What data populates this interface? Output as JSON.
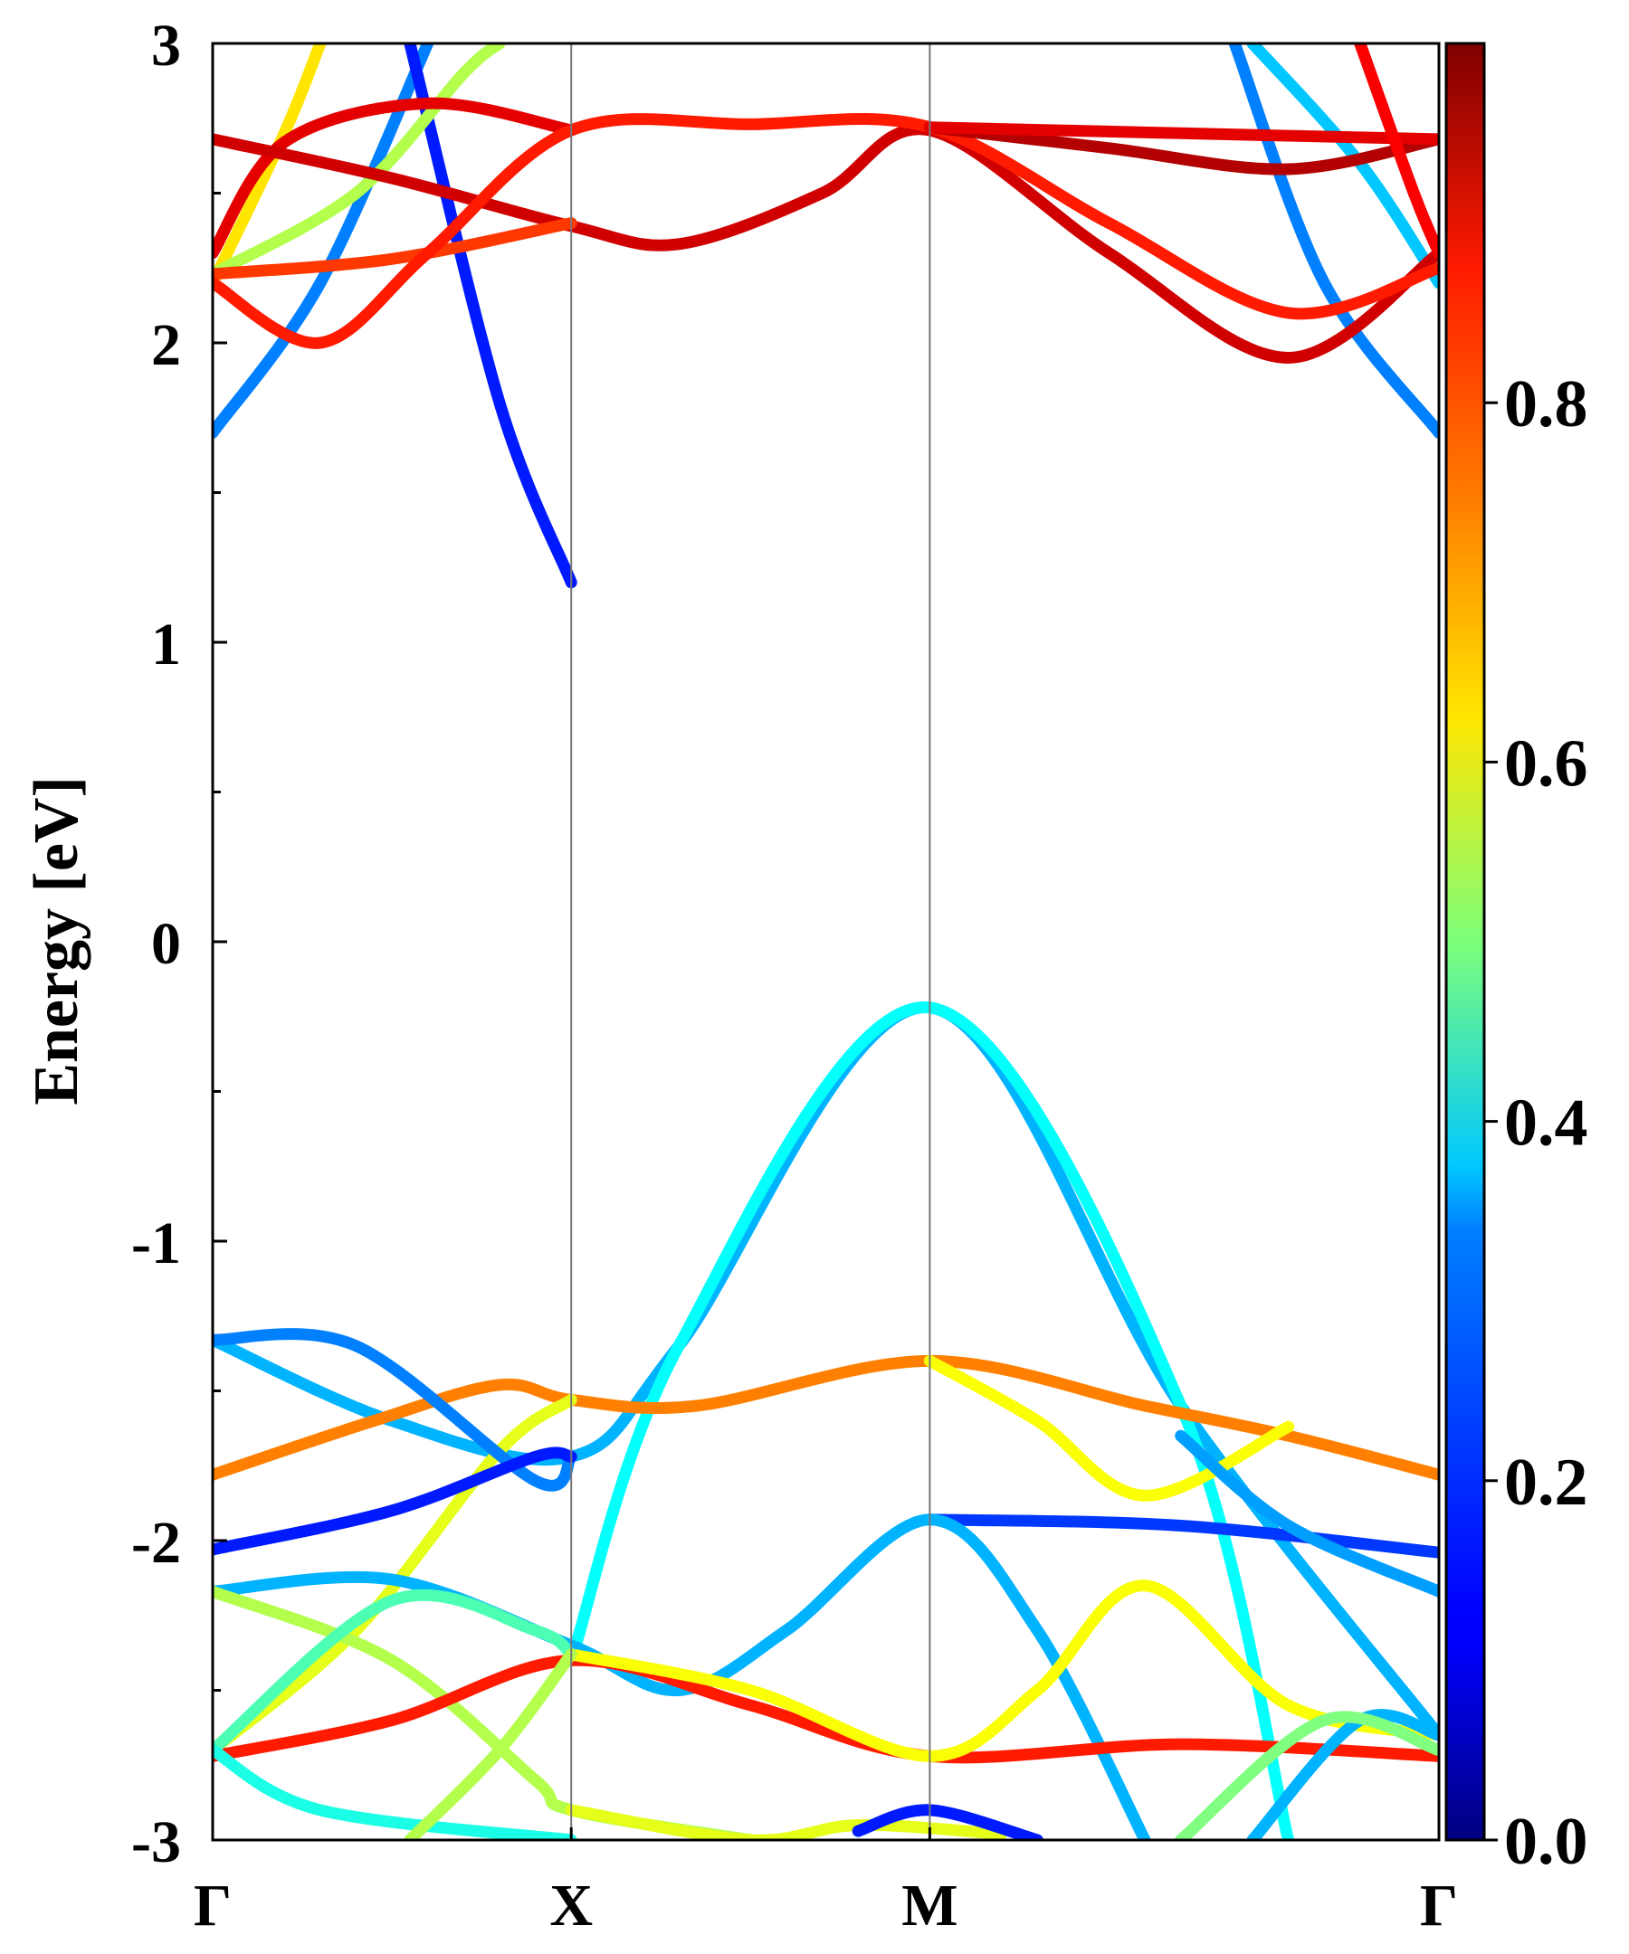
{
  "chart_data": {
    "type": "line",
    "title": "",
    "ylabel": "Energy [eV]",
    "xlabel": "",
    "ylim": [
      -3,
      3
    ],
    "yticks": [
      "-3",
      "-2",
      "-1",
      "0",
      "1",
      "2",
      "3"
    ],
    "kpath": [
      "Γ",
      "X",
      "M",
      "Γ"
    ],
    "kpath_positions": [
      0,
      1,
      2,
      3.42
    ],
    "colorbar": {
      "colormap": "jet",
      "range": [
        0.0,
        1.0
      ],
      "ticks": [
        "0.0",
        "0.2",
        "0.4",
        "0.6",
        "0.8"
      ]
    },
    "series": [
      {
        "color_value": 0.3,
        "points": [
          [
            0,
            -1.33
          ],
          [
            0.5,
            -1.6
          ],
          [
            1,
            -1.72
          ],
          [
            1.3,
            -1.35
          ],
          [
            2,
            -0.22
          ],
          [
            2.7,
            -1.55
          ],
          [
            3.42,
            -2.65
          ]
        ]
      },
      {
        "color_value": 0.38,
        "points": [
          [
            1,
            -2.4
          ],
          [
            1.3,
            -1.35
          ],
          [
            2,
            -0.22
          ],
          [
            2.7,
            -1.55
          ],
          [
            3.0,
            -3.0
          ]
        ]
      },
      {
        "color_value": 0.75,
        "points": [
          [
            0,
            -1.78
          ],
          [
            0.45,
            -1.6
          ],
          [
            0.8,
            -1.48
          ],
          [
            1,
            -1.53
          ],
          [
            1.35,
            -1.55
          ],
          [
            2,
            -1.4
          ],
          [
            2.6,
            -1.55
          ],
          [
            3.0,
            -1.65
          ],
          [
            3.42,
            -1.78
          ]
        ]
      },
      {
        "color_value": 0.6,
        "points": [
          [
            0,
            -2.7
          ],
          [
            0.4,
            -2.3
          ],
          [
            0.8,
            -1.7
          ],
          [
            1,
            -1.53
          ]
        ]
      },
      {
        "color_value": 0.62,
        "points": [
          [
            2,
            -1.4
          ],
          [
            2.3,
            -1.6
          ],
          [
            2.6,
            -1.85
          ],
          [
            3.0,
            -1.62
          ]
        ]
      },
      {
        "color_value": 0.25,
        "points": [
          [
            0,
            -1.33
          ],
          [
            0.4,
            -1.35
          ],
          [
            0.9,
            -1.8
          ],
          [
            1,
            -1.72
          ]
        ]
      },
      {
        "color_value": 0.15,
        "points": [
          [
            0,
            -2.03
          ],
          [
            0.5,
            -1.9
          ],
          [
            0.9,
            -1.72
          ],
          [
            1,
            -1.72
          ]
        ]
      },
      {
        "color_value": 0.18,
        "points": [
          [
            2,
            -1.93
          ],
          [
            2.7,
            -1.95
          ],
          [
            3.42,
            -2.04
          ]
        ]
      },
      {
        "color_value": 0.28,
        "points": [
          [
            2.7,
            -1.65
          ],
          [
            3.0,
            -1.95
          ],
          [
            3.42,
            -2.17
          ]
        ]
      },
      {
        "color_value": 0.3,
        "points": [
          [
            0,
            -2.17
          ],
          [
            0.5,
            -2.13
          ],
          [
            1,
            -2.35
          ],
          [
            1.3,
            -2.5
          ],
          [
            1.6,
            -2.3
          ],
          [
            2,
            -1.93
          ],
          [
            2.3,
            -2.3
          ],
          [
            2.6,
            -3.0
          ]
        ]
      },
      {
        "color_value": 0.55,
        "points": [
          [
            0,
            -2.17
          ],
          [
            0.5,
            -2.4
          ],
          [
            0.9,
            -2.8
          ],
          [
            1,
            -2.9
          ],
          [
            1.5,
            -3.0
          ]
        ]
      },
      {
        "color_value": 0.85,
        "points": [
          [
            0,
            -2.72
          ],
          [
            0.5,
            -2.6
          ],
          [
            1,
            -2.4
          ],
          [
            1.5,
            -2.55
          ],
          [
            2,
            -2.72
          ],
          [
            2.7,
            -2.68
          ],
          [
            3.42,
            -2.72
          ]
        ]
      },
      {
        "color_value": 0.62,
        "points": [
          [
            1,
            -2.38
          ],
          [
            1.5,
            -2.5
          ],
          [
            2,
            -2.72
          ],
          [
            2.3,
            -2.5
          ],
          [
            2.6,
            -2.15
          ],
          [
            3.0,
            -2.55
          ],
          [
            3.42,
            -2.65
          ]
        ]
      },
      {
        "color_value": 0.45,
        "points": [
          [
            0,
            -2.7
          ],
          [
            0.5,
            -2.2
          ],
          [
            0.9,
            -2.3
          ],
          [
            1,
            -2.38
          ]
        ]
      },
      {
        "color_value": 0.4,
        "points": [
          [
            0,
            -2.7
          ],
          [
            0.3,
            -2.9
          ],
          [
            1,
            -3.0
          ]
        ]
      },
      {
        "color_value": 0.55,
        "points": [
          [
            0.55,
            -3.0
          ],
          [
            0.8,
            -2.7
          ],
          [
            1,
            -2.38
          ]
        ]
      },
      {
        "color_value": 0.3,
        "points": [
          [
            2.9,
            -3.0
          ],
          [
            3.2,
            -2.6
          ],
          [
            3.42,
            -2.65
          ]
        ]
      },
      {
        "color_value": 0.5,
        "points": [
          [
            2.7,
            -3.0
          ],
          [
            3.1,
            -2.6
          ],
          [
            3.42,
            -2.7
          ]
        ]
      },
      {
        "color_value": 0.6,
        "points": [
          [
            1,
            -2.9
          ],
          [
            1.5,
            -3.0
          ],
          [
            1.8,
            -2.95
          ],
          [
            2.2,
            -2.98
          ]
        ]
      },
      {
        "color_value": 0.15,
        "points": [
          [
            1.8,
            -2.97
          ],
          [
            2,
            -2.9
          ],
          [
            2.3,
            -3.0
          ]
        ]
      },
      {
        "color_value": 0.25,
        "points": [
          [
            0,
            1.7
          ],
          [
            0.3,
            2.2
          ],
          [
            0.6,
            3.0
          ]
        ]
      },
      {
        "color_value": 0.15,
        "points": [
          [
            0.55,
            3.0
          ],
          [
            0.8,
            1.8
          ],
          [
            1,
            1.2
          ]
        ]
      },
      {
        "color_value": 0.25,
        "points": [
          [
            2.85,
            3.0
          ],
          [
            3.1,
            2.2
          ],
          [
            3.42,
            1.7
          ]
        ]
      },
      {
        "color_value": 0.32,
        "points": [
          [
            2.9,
            3.0
          ],
          [
            3.2,
            2.6
          ],
          [
            3.42,
            2.2
          ]
        ]
      },
      {
        "color_value": 0.65,
        "points": [
          [
            0,
            2.2
          ],
          [
            0.2,
            2.7
          ],
          [
            0.3,
            3.0
          ]
        ]
      },
      {
        "color_value": 0.55,
        "points": [
          [
            0,
            2.23
          ],
          [
            0.4,
            2.5
          ],
          [
            0.7,
            2.9
          ],
          [
            0.8,
            3.0
          ]
        ]
      },
      {
        "color_value": 0.9,
        "points": [
          [
            0,
            2.3
          ],
          [
            0.2,
            2.67
          ],
          [
            0.6,
            2.8
          ],
          [
            1,
            2.71
          ]
        ]
      },
      {
        "color_value": 0.92,
        "points": [
          [
            0,
            2.68
          ],
          [
            0.5,
            2.55
          ],
          [
            1,
            2.39
          ],
          [
            1.3,
            2.33
          ],
          [
            1.7,
            2.5
          ],
          [
            2,
            2.71
          ],
          [
            2.5,
            2.3
          ],
          [
            3.0,
            1.95
          ],
          [
            3.42,
            2.3
          ]
        ]
      },
      {
        "color_value": 0.82,
        "points": [
          [
            0,
            2.23
          ],
          [
            0.5,
            2.28
          ],
          [
            1,
            2.4
          ]
        ]
      },
      {
        "color_value": 0.85,
        "points": [
          [
            0,
            2.2
          ],
          [
            0.3,
            2.0
          ],
          [
            0.6,
            2.3
          ],
          [
            1,
            2.71
          ],
          [
            1.5,
            2.73
          ],
          [
            2,
            2.72
          ],
          [
            2.5,
            2.4
          ],
          [
            3.0,
            2.1
          ],
          [
            3.42,
            2.25
          ]
        ]
      },
      {
        "color_value": 0.95,
        "points": [
          [
            2,
            2.72
          ],
          [
            2.5,
            2.65
          ],
          [
            3.0,
            2.58
          ],
          [
            3.42,
            2.68
          ]
        ]
      },
      {
        "color_value": 0.9,
        "points": [
          [
            2,
            2.72
          ],
          [
            2.7,
            2.7
          ],
          [
            3.42,
            2.68
          ]
        ]
      },
      {
        "color_value": 0.88,
        "points": [
          [
            3.2,
            3.0
          ],
          [
            3.35,
            2.5
          ],
          [
            3.42,
            2.3
          ]
        ]
      }
    ]
  }
}
